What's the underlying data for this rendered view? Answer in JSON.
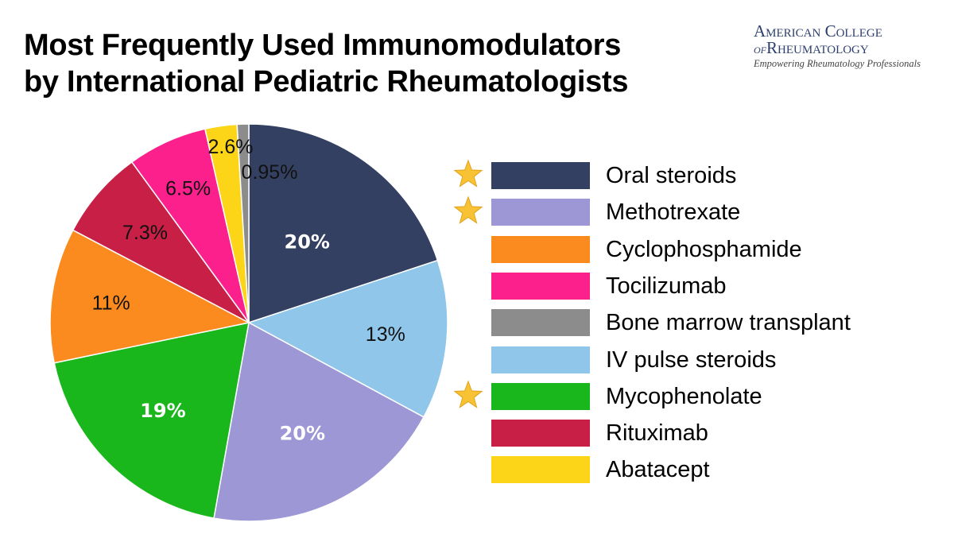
{
  "title": {
    "line1": "Most Frequently Used Immunomodulators",
    "line2": "by International Pediatric Rheumatologists"
  },
  "logo": {
    "line1": "American College",
    "of": "of",
    "line2": "Rheumatology",
    "tagline": "Empowering Rheumatology Professionals"
  },
  "chart_data": {
    "type": "pie",
    "title": "Most Frequently Used Immunomodulators by International Pediatric Rheumatologists",
    "start_angle_deg": 0,
    "direction": "clockwise",
    "legend_placement": "right",
    "slices": [
      {
        "name": "Oral steroids",
        "value": 20,
        "label": "20%",
        "color": "#334061",
        "label_color": "#ffffff",
        "label_bold": true
      },
      {
        "name": "IV pulse steroids",
        "value": 13,
        "label": "13%",
        "color": "#8fc6ea",
        "label_color": "#111111",
        "label_bold": false
      },
      {
        "name": "Methotrexate",
        "value": 20,
        "label": "20%",
        "color": "#9d97d6",
        "label_color": "#ffffff",
        "label_bold": true
      },
      {
        "name": "Mycophenolate",
        "value": 19,
        "label": "19%",
        "color": "#19b71c",
        "label_color": "#ffffff",
        "label_bold": true
      },
      {
        "name": "Cyclophosphamide",
        "value": 11,
        "label": "11%",
        "color": "#fb8b1f",
        "label_color": "#111111",
        "label_bold": false
      },
      {
        "name": "Rituximab",
        "value": 7.3,
        "label": "7.3%",
        "color": "#c71f45",
        "label_color": "#111111",
        "label_bold": false
      },
      {
        "name": "Tocilizumab",
        "value": 6.5,
        "label": "6.5%",
        "color": "#fc208c",
        "label_color": "#111111",
        "label_bold": false
      },
      {
        "name": "Abatacept",
        "value": 2.6,
        "label": "2.6%",
        "color": "#fcd418",
        "label_color": "#111111",
        "label_bold": false
      },
      {
        "name": "Bone marrow transplant",
        "value": 0.95,
        "label": "0.95%",
        "color": "#8c8c8c",
        "label_color": "#111111",
        "label_bold": false
      }
    ],
    "legend": [
      {
        "label": "Oral steroids",
        "color": "#334061",
        "starred": true
      },
      {
        "label": "Methotrexate",
        "color": "#9d97d6",
        "starred": true
      },
      {
        "label": "Cyclophosphamide",
        "color": "#fb8b1f",
        "starred": false
      },
      {
        "label": "Tocilizumab",
        "color": "#fc208c",
        "starred": false
      },
      {
        "label": "Bone marrow transplant",
        "color": "#8c8c8c",
        "starred": false
      },
      {
        "label": "IV pulse steroids",
        "color": "#8fc6ea",
        "starred": false
      },
      {
        "label": "Mycophenolate",
        "color": "#19b71c",
        "starred": true
      },
      {
        "label": "Rituximab",
        "color": "#c71f45",
        "starred": false
      },
      {
        "label": "Abatacept",
        "color": "#fcd418",
        "starred": false
      }
    ],
    "star_color": "#f7c234"
  }
}
